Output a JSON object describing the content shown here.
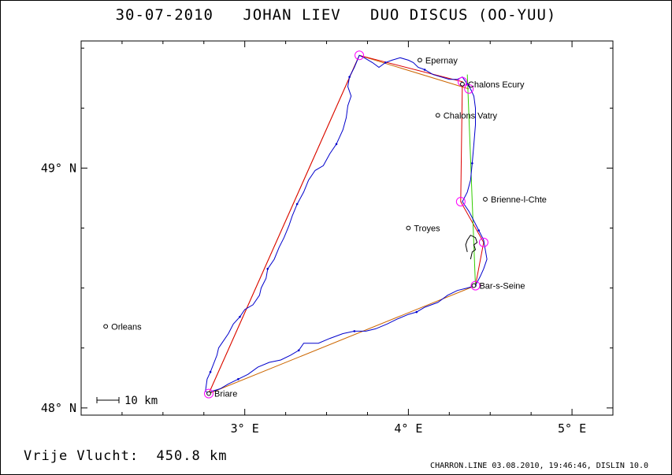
{
  "header": {
    "title": "30-07-2010   JOHAN LIEV   DUO DISCUS (OO-YUU)"
  },
  "footer": {
    "distance_label": "Vrije Vlucht:",
    "distance_value": "450.8 km",
    "credit": "CHARRON.LINE 03.08.2010, 19:46:46, DISLIN 10.0"
  },
  "map": {
    "lon_range": [
      2.0,
      5.25
    ],
    "lat_range": [
      47.97,
      49.53
    ],
    "x_ticks": [
      {
        "lon": 3,
        "label": "3° E"
      },
      {
        "lon": 4,
        "label": "4° E"
      },
      {
        "lon": 5,
        "label": "5° E"
      }
    ],
    "y_ticks": [
      {
        "lat": 48,
        "label": "48° N"
      },
      {
        "lat": 49,
        "label": "49° N"
      }
    ],
    "scale_bar": {
      "label": "10 km",
      "km": 10
    },
    "colors": {
      "track": "#0000cc",
      "route_orange": "#cc6600",
      "route_red": "#dd0000",
      "route_green": "#33cc00",
      "turnpoint": "#ff00ff",
      "town": "#000000"
    },
    "towns": [
      {
        "name": "Epernay",
        "lon": 4.07,
        "lat": 49.45
      },
      {
        "name": "Chalons Ecury",
        "lon": 4.33,
        "lat": 49.35
      },
      {
        "name": "Chalons Vatry",
        "lon": 4.18,
        "lat": 49.22
      },
      {
        "name": "Brienne-l-Chte",
        "lon": 4.47,
        "lat": 48.87
      },
      {
        "name": "Troyes",
        "lon": 4.0,
        "lat": 48.75
      },
      {
        "name": "Bar-s-Seine",
        "lon": 4.4,
        "lat": 48.51
      },
      {
        "name": "Orleans",
        "lon": 2.15,
        "lat": 48.34
      },
      {
        "name": "Briare",
        "lon": 2.78,
        "lat": 48.06
      }
    ],
    "turnpoints": [
      {
        "lon": 2.78,
        "lat": 48.06
      },
      {
        "lon": 3.7,
        "lat": 49.47
      },
      {
        "lon": 4.33,
        "lat": 49.36
      },
      {
        "lon": 4.37,
        "lat": 49.33
      },
      {
        "lon": 4.32,
        "lat": 48.86
      },
      {
        "lon": 4.46,
        "lat": 48.69
      },
      {
        "lon": 4.41,
        "lat": 48.51
      }
    ],
    "routes": [
      {
        "color_key": "route_orange",
        "points": [
          [
            2.78,
            48.06
          ],
          [
            3.7,
            49.47
          ],
          [
            4.37,
            49.33
          ]
        ]
      },
      {
        "color_key": "route_orange",
        "points": [
          [
            4.41,
            48.51
          ],
          [
            2.78,
            48.06
          ]
        ]
      },
      {
        "color_key": "route_red",
        "points": [
          [
            2.78,
            48.06
          ],
          [
            3.7,
            49.47
          ],
          [
            4.33,
            49.36
          ],
          [
            4.32,
            48.86
          ],
          [
            4.46,
            48.69
          ],
          [
            4.41,
            48.51
          ]
        ]
      },
      {
        "color_key": "route_green",
        "points": [
          [
            4.36,
            49.39
          ],
          [
            4.41,
            48.51
          ]
        ]
      }
    ],
    "track": [
      [
        2.78,
        48.06
      ],
      [
        2.76,
        48.07
      ],
      [
        2.77,
        48.12
      ],
      [
        2.79,
        48.15
      ],
      [
        2.83,
        48.22
      ],
      [
        2.84,
        48.25
      ],
      [
        2.86,
        48.27
      ],
      [
        2.9,
        48.31
      ],
      [
        2.93,
        48.35
      ],
      [
        2.97,
        48.38
      ],
      [
        3.0,
        48.41
      ],
      [
        3.05,
        48.43
      ],
      [
        3.09,
        48.47
      ],
      [
        3.1,
        48.5
      ],
      [
        3.13,
        48.54
      ],
      [
        3.14,
        48.58
      ],
      [
        3.18,
        48.62
      ],
      [
        3.21,
        48.67
      ],
      [
        3.24,
        48.71
      ],
      [
        3.27,
        48.76
      ],
      [
        3.29,
        48.8
      ],
      [
        3.32,
        48.85
      ],
      [
        3.36,
        48.9
      ],
      [
        3.39,
        48.95
      ],
      [
        3.43,
        48.99
      ],
      [
        3.48,
        49.01
      ],
      [
        3.52,
        49.06
      ],
      [
        3.56,
        49.1
      ],
      [
        3.6,
        49.16
      ],
      [
        3.62,
        49.21
      ],
      [
        3.63,
        49.26
      ],
      [
        3.65,
        49.3
      ],
      [
        3.63,
        49.34
      ],
      [
        3.64,
        49.38
      ],
      [
        3.67,
        49.42
      ],
      [
        3.7,
        49.47
      ],
      [
        3.73,
        49.46
      ],
      [
        3.78,
        49.44
      ],
      [
        3.82,
        49.42
      ],
      [
        3.86,
        49.44
      ],
      [
        3.9,
        49.45
      ],
      [
        3.95,
        49.46
      ],
      [
        4.0,
        49.45
      ],
      [
        4.03,
        49.44
      ],
      [
        4.06,
        49.42
      ],
      [
        4.1,
        49.41
      ],
      [
        4.15,
        49.39
      ],
      [
        4.2,
        49.38
      ],
      [
        4.25,
        49.37
      ],
      [
        4.3,
        49.37
      ],
      [
        4.33,
        49.38
      ],
      [
        4.36,
        49.35
      ],
      [
        4.38,
        49.33
      ],
      [
        4.4,
        49.3
      ],
      [
        4.41,
        49.25
      ],
      [
        4.41,
        49.18
      ],
      [
        4.4,
        49.1
      ],
      [
        4.39,
        49.02
      ],
      [
        4.38,
        48.95
      ],
      [
        4.36,
        48.9
      ],
      [
        4.33,
        48.86
      ],
      [
        4.37,
        48.82
      ],
      [
        4.4,
        48.78
      ],
      [
        4.43,
        48.74
      ],
      [
        4.46,
        48.7
      ],
      [
        4.47,
        48.66
      ],
      [
        4.48,
        48.62
      ],
      [
        4.46,
        48.58
      ],
      [
        4.44,
        48.55
      ],
      [
        4.41,
        48.51
      ],
      [
        4.36,
        48.5
      ],
      [
        4.3,
        48.49
      ],
      [
        4.24,
        48.47
      ],
      [
        4.18,
        48.44
      ],
      [
        4.1,
        48.42
      ],
      [
        4.05,
        48.4
      ],
      [
        4.0,
        48.39
      ],
      [
        3.93,
        48.37
      ],
      [
        3.87,
        48.35
      ],
      [
        3.8,
        48.33
      ],
      [
        3.74,
        48.32
      ],
      [
        3.67,
        48.32
      ],
      [
        3.6,
        48.31
      ],
      [
        3.52,
        48.29
      ],
      [
        3.45,
        48.27
      ],
      [
        3.4,
        48.27
      ],
      [
        3.36,
        48.27
      ],
      [
        3.33,
        48.24
      ],
      [
        3.28,
        48.22
      ],
      [
        3.22,
        48.2
      ],
      [
        3.15,
        48.19
      ],
      [
        3.08,
        48.17
      ],
      [
        3.02,
        48.14
      ],
      [
        2.96,
        48.12
      ],
      [
        2.9,
        48.1
      ],
      [
        2.85,
        48.08
      ],
      [
        2.8,
        48.07
      ],
      [
        2.78,
        48.06
      ]
    ],
    "cloud_symbol": [
      [
        4.36,
        48.65
      ],
      [
        4.35,
        48.68
      ],
      [
        4.36,
        48.7
      ],
      [
        4.38,
        48.72
      ],
      [
        4.41,
        48.71
      ],
      [
        4.42,
        48.69
      ],
      [
        4.4,
        48.68
      ],
      [
        4.41,
        48.66
      ],
      [
        4.39,
        48.65
      ],
      [
        4.38,
        48.62
      ]
    ]
  }
}
